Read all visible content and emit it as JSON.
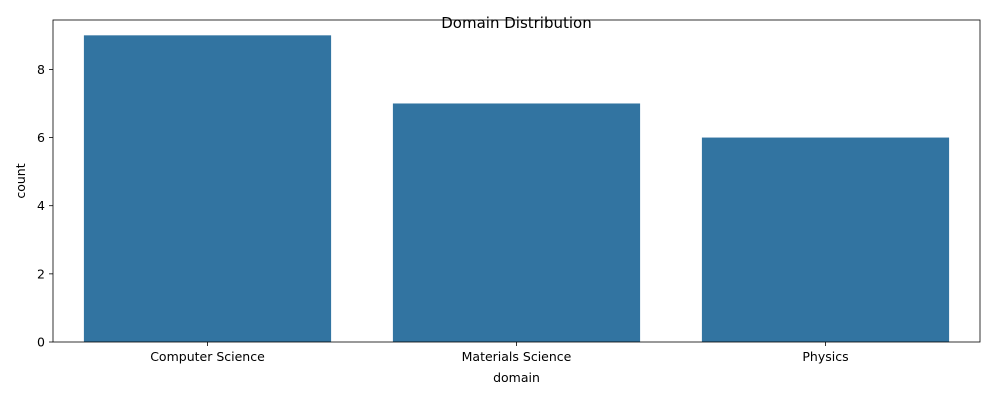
{
  "chart_data": {
    "type": "bar",
    "title": "Domain Distribution",
    "xlabel": "domain",
    "ylabel": "count",
    "categories": [
      "Computer Science",
      "Materials Science",
      "Physics"
    ],
    "values": [
      9,
      7,
      6
    ],
    "ylim": [
      0,
      9.45
    ],
    "yticks": [
      0,
      2,
      4,
      6,
      8
    ],
    "grid": false,
    "legend": "none",
    "bar_color": "#3274a1"
  }
}
